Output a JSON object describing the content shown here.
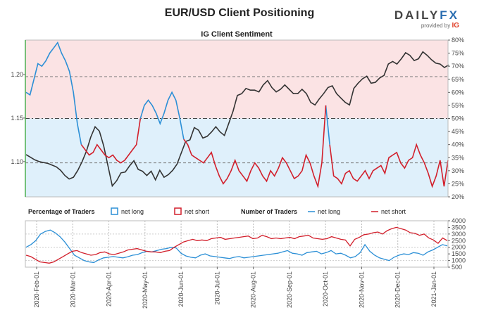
{
  "title": "EUR/USD Client Positioning",
  "brand": {
    "name_left": "DAILY",
    "name_right": "FX",
    "sub": "provided by",
    "sub_brand": "IG"
  },
  "colors": {
    "long": "#2b8fd6",
    "short": "#d21f2b",
    "price": "#333333",
    "long_zone": "#dff0fb",
    "short_zone": "#fbe3e4"
  },
  "chart_data": [
    {
      "type": "line",
      "subtitle": "IG Client Sentiment",
      "y_left_ticks": [
        "1.20",
        "1.15",
        "1.10"
      ],
      "y_left_values": [
        1.2,
        1.15,
        1.1
      ],
      "y_left_range": [
        1.0595,
        1.2395
      ],
      "y_right_ticks": [
        "80%",
        "75%",
        "70%",
        "65%",
        "60%",
        "55%",
        "50%",
        "45%",
        "40%",
        "35%",
        "30%",
        "25%",
        "20%"
      ],
      "y_right_range": [
        20,
        80
      ],
      "reference_lines_pct": [
        50,
        66,
        33
      ],
      "series": [
        {
          "role": "price",
          "values": [
            1.108,
            1.105,
            1.102,
            1.1,
            1.099,
            1.098,
            1.096,
            1.094,
            1.09,
            1.084,
            1.08,
            1.082,
            1.09,
            1.1,
            1.112,
            1.128,
            1.14,
            1.135,
            1.118,
            1.095,
            1.072,
            1.078,
            1.087,
            1.088,
            1.095,
            1.101,
            1.091,
            1.089,
            1.084,
            1.089,
            1.079,
            1.09,
            1.082,
            1.085,
            1.09,
            1.097,
            1.11,
            1.123,
            1.125,
            1.139,
            1.136,
            1.127,
            1.129,
            1.134,
            1.14,
            1.134,
            1.13,
            1.144,
            1.158,
            1.176,
            1.178,
            1.184,
            1.182,
            1.182,
            1.18,
            1.188,
            1.193,
            1.185,
            1.18,
            1.183,
            1.188,
            1.183,
            1.178,
            1.178,
            1.183,
            1.178,
            1.168,
            1.165,
            1.172,
            1.178,
            1.185,
            1.187,
            1.178,
            1.173,
            1.168,
            1.165,
            1.184,
            1.19,
            1.195,
            1.198,
            1.19,
            1.191,
            1.196,
            1.199,
            1.212,
            1.215,
            1.212,
            1.218,
            1.225,
            1.222,
            1.216,
            1.218,
            1.226,
            1.222,
            1.217,
            1.213,
            1.212,
            1.208,
            1.211
          ]
        },
        {
          "role": "net long %",
          "name": "net long",
          "values": [
            60,
            59,
            65,
            71,
            70,
            72,
            75,
            77,
            79,
            75,
            72,
            68,
            60,
            48,
            40,
            38,
            36,
            37,
            40,
            38,
            36,
            35,
            36,
            34,
            33,
            34,
            36,
            38,
            40,
            50,
            55,
            57,
            55,
            52,
            48,
            52,
            57,
            60,
            57,
            50,
            42,
            40,
            36,
            35,
            34,
            33,
            35,
            37,
            32,
            28,
            25,
            27,
            30,
            34,
            30,
            28,
            26,
            30,
            33,
            31,
            28,
            26,
            30,
            28,
            31,
            35,
            33,
            30,
            27,
            28,
            30,
            36,
            33,
            28,
            24,
            33,
            55,
            40,
            28,
            27,
            25,
            29,
            30,
            27,
            26,
            28,
            30,
            27,
            30,
            31,
            32,
            29,
            35,
            36,
            37,
            33,
            31,
            34,
            35,
            40,
            36,
            33,
            29,
            24,
            28,
            34,
            24,
            34
          ]
        }
      ],
      "short_series_note_hidden": ""
    },
    {
      "type": "line",
      "legend_pct_title": "Percentage of Traders",
      "legend_num_title": "Number of Traders",
      "legend_long": "net long",
      "legend_short": "net short",
      "x_ticks": [
        "2020-Feb-01",
        "2020-Mar-01",
        "2020-Apr-01",
        "2020-May-01",
        "2020-Jun-01",
        "2020-Jul-01",
        "2020-Aug-01",
        "2020-Sep-01",
        "2020-Oct-01",
        "2020-Nov-01",
        "2020-Dec-01",
        "2021-Jan-01"
      ],
      "y_right_ticks": [
        "4000",
        "3500",
        "3000",
        "2500",
        "2000",
        "1500",
        "1000",
        "500"
      ],
      "y_right_range": [
        500,
        4000
      ],
      "series": [
        {
          "name": "net long",
          "values": [
            2000,
            2200,
            2500,
            3000,
            3200,
            3300,
            3100,
            2800,
            2400,
            1900,
            1400,
            1200,
            1000,
            900,
            850,
            1050,
            1200,
            1250,
            1300,
            1250,
            1200,
            1280,
            1400,
            1450,
            1600,
            1700,
            1650,
            1750,
            1850,
            1900,
            2000,
            1950,
            1550,
            1350,
            1250,
            1200,
            1400,
            1500,
            1350,
            1300,
            1250,
            1200,
            1150,
            1250,
            1300,
            1200,
            1250,
            1300,
            1350,
            1400,
            1450,
            1500,
            1550,
            1650,
            1750,
            1550,
            1500,
            1400,
            1600,
            1650,
            1700,
            1500,
            1600,
            1750,
            1500,
            1550,
            1400,
            1200,
            1300,
            1600,
            2200,
            1700,
            1400,
            1200,
            1100,
            1000,
            1250,
            1400,
            1500,
            1450,
            1600,
            1550,
            1400,
            1650,
            1800,
            2000,
            2200,
            2100
          ]
        },
        {
          "name": "net short",
          "values": [
            1400,
            1300,
            1100,
            900,
            850,
            800,
            900,
            1100,
            1300,
            1500,
            1700,
            1750,
            1600,
            1500,
            1400,
            1450,
            1600,
            1650,
            1500,
            1450,
            1550,
            1650,
            1800,
            1850,
            1900,
            1800,
            1700,
            1650,
            1650,
            1600,
            1700,
            1750,
            2000,
            2200,
            2400,
            2500,
            2600,
            2500,
            2550,
            2500,
            2650,
            2700,
            2750,
            2600,
            2650,
            2700,
            2750,
            2800,
            2850,
            2650,
            2700,
            2900,
            2800,
            2650,
            2700,
            2650,
            2700,
            2750,
            2650,
            2800,
            2850,
            2900,
            2700,
            2650,
            2600,
            2650,
            2800,
            2700,
            2600,
            2550,
            2100,
            2600,
            2750,
            2950,
            3000,
            3100,
            3150,
            3000,
            3250,
            3400,
            3500,
            3400,
            3300,
            3100,
            3050,
            2900,
            3000,
            2700,
            2550,
            2300,
            2700,
            2500
          ]
        }
      ]
    }
  ]
}
